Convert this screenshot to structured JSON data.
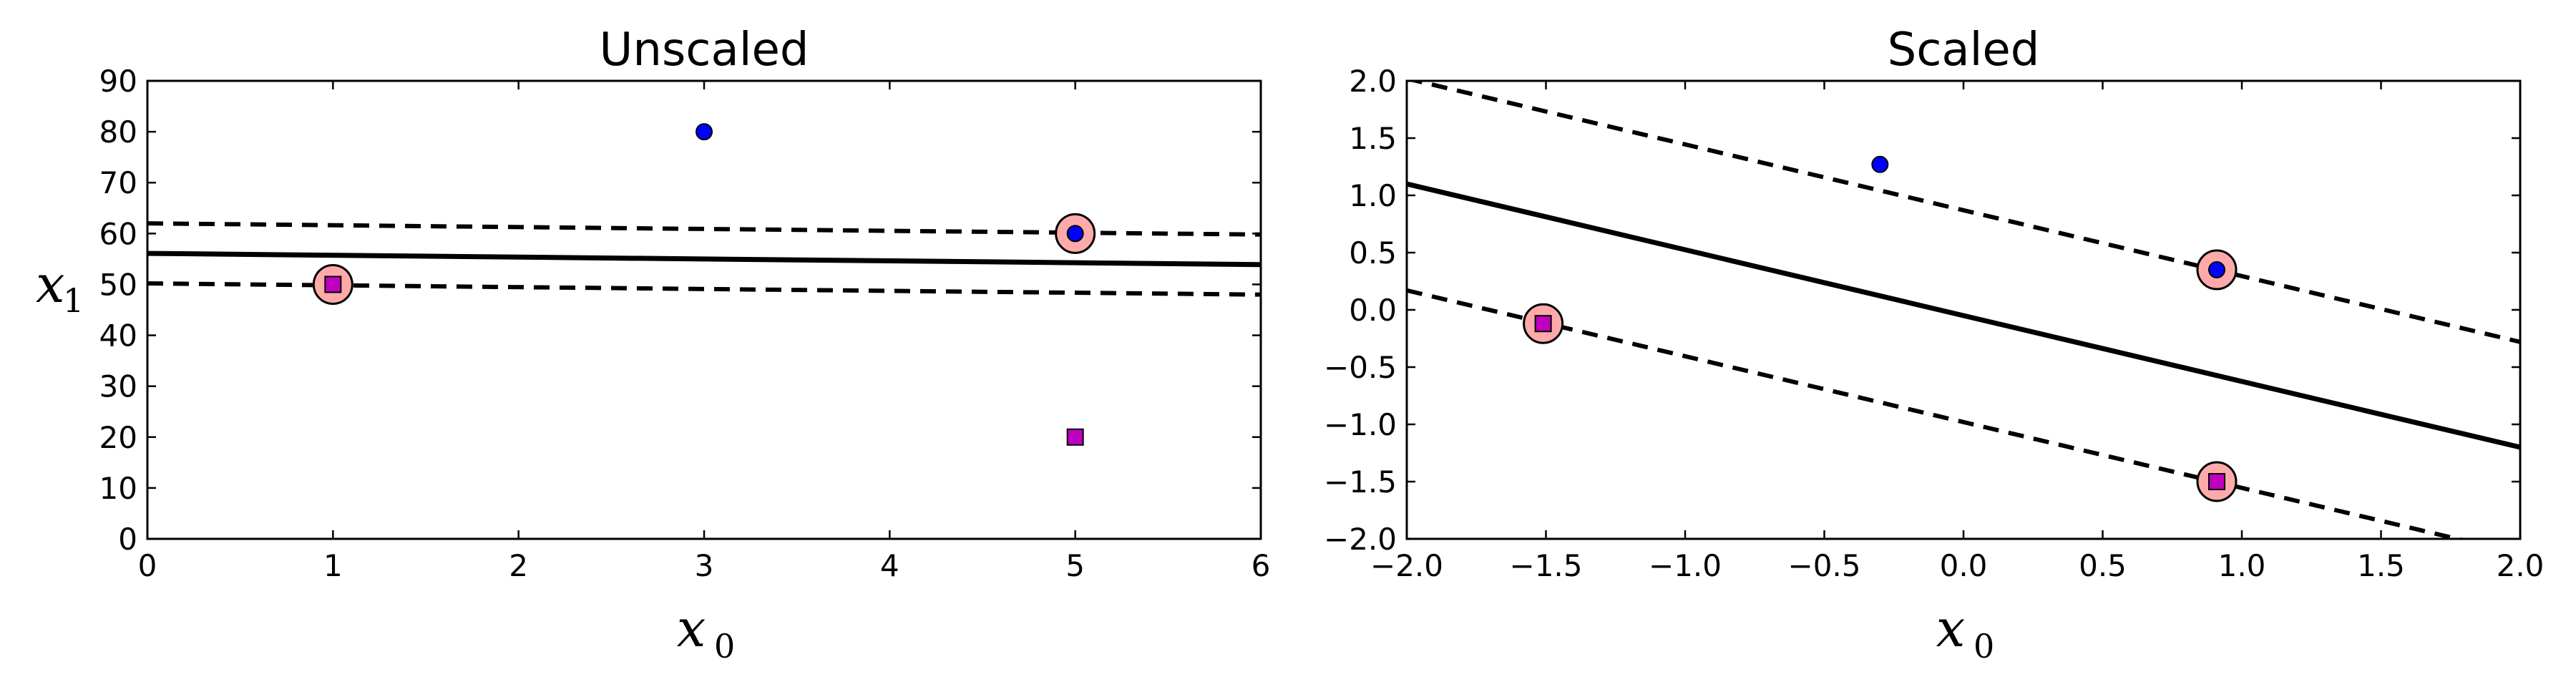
{
  "chart_data": [
    {
      "type": "scatter",
      "title": "Unscaled",
      "xlabel": "x",
      "xlabel_sub": "0",
      "ylabel": "x",
      "ylabel_sub": "1",
      "xlim": [
        0,
        6
      ],
      "ylim": [
        0,
        90
      ],
      "xticks": [
        0,
        1,
        2,
        3,
        4,
        5,
        6
      ],
      "yticks": [
        0,
        10,
        20,
        30,
        40,
        50,
        60,
        70,
        80,
        90
      ],
      "xtick_labels": [
        "0",
        "1",
        "2",
        "3",
        "4",
        "5",
        "6"
      ],
      "ytick_labels": [
        "0",
        "10",
        "20",
        "30",
        "40",
        "50",
        "60",
        "70",
        "80",
        "90"
      ],
      "grid": false,
      "series": [
        {
          "marker": "circle",
          "color": "#0000ff",
          "points": [
            [
              3,
              80
            ],
            [
              5,
              60
            ]
          ]
        },
        {
          "marker": "square",
          "color": "#c000c0",
          "points": [
            [
              1,
              50
            ],
            [
              5,
              20
            ]
          ]
        }
      ],
      "support_vectors": {
        "color": "#ffaaaa",
        "points": [
          [
            1,
            50
          ],
          [
            5,
            60
          ]
        ]
      },
      "decision_boundary": [
        [
          0,
          56.1
        ],
        [
          6,
          53.9
        ]
      ],
      "margins": [
        [
          [
            0,
            62.0
          ],
          [
            6,
            59.8
          ]
        ],
        [
          [
            0,
            50.2
          ],
          [
            6,
            48.0
          ]
        ]
      ]
    },
    {
      "type": "scatter",
      "title": "Scaled",
      "xlabel": "x",
      "xlabel_sub": "0",
      "ylabel": "",
      "xlim": [
        -2.0,
        2.0
      ],
      "ylim": [
        -2.0,
        2.0
      ],
      "xticks": [
        -2.0,
        -1.5,
        -1.0,
        -0.5,
        0.0,
        0.5,
        1.0,
        1.5,
        2.0
      ],
      "yticks": [
        -2.0,
        -1.5,
        -1.0,
        -0.5,
        0.0,
        0.5,
        1.0,
        1.5,
        2.0
      ],
      "xtick_labels": [
        "−2.0",
        "−1.5",
        "−1.0",
        "−0.5",
        "0.0",
        "0.5",
        "1.0",
        "1.5",
        "2.0"
      ],
      "ytick_labels": [
        "−2.0",
        "−1.5",
        "−1.0",
        "−0.5",
        "0.0",
        "0.5",
        "1.0",
        "1.5",
        "2.0"
      ],
      "grid": false,
      "series": [
        {
          "marker": "circle",
          "color": "#0000ff",
          "points": [
            [
              -0.3,
              1.27
            ],
            [
              0.91,
              0.35
            ]
          ]
        },
        {
          "marker": "square",
          "color": "#c000c0",
          "points": [
            [
              -1.51,
              -0.12
            ],
            [
              0.91,
              -1.5
            ]
          ]
        }
      ],
      "support_vectors": {
        "color": "#ffaaaa",
        "points": [
          [
            -1.51,
            -0.12
          ],
          [
            0.91,
            0.35
          ],
          [
            0.91,
            -1.5
          ]
        ]
      },
      "decision_boundary": [
        [
          -2.0,
          1.1
        ],
        [
          2.0,
          -1.2
        ]
      ],
      "margins": [
        [
          [
            -2.0,
            2.02
          ],
          [
            2.0,
            -0.28
          ]
        ],
        [
          [
            -2.0,
            0.17
          ],
          [
            2.0,
            -2.13
          ]
        ]
      ]
    }
  ]
}
